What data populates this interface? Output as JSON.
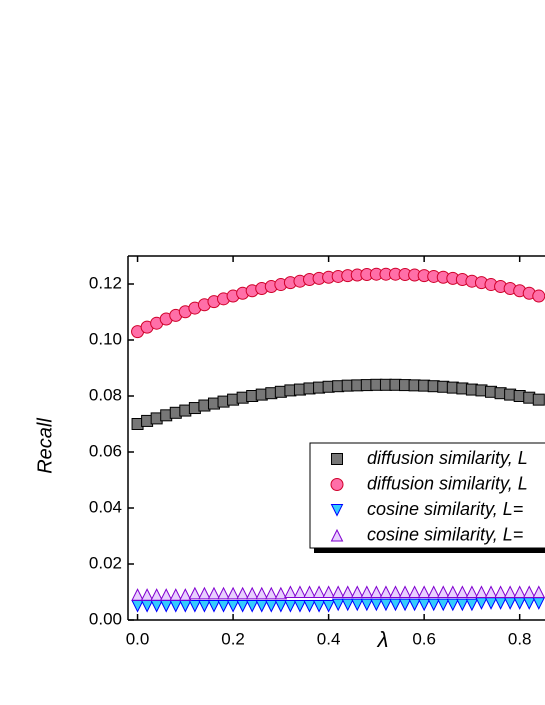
{
  "chart_data": {
    "type": "scatter",
    "x_label": "λ",
    "y_label": "Recall",
    "x": [
      0.0,
      0.02,
      0.04,
      0.06,
      0.08,
      0.1,
      0.12,
      0.14,
      0.16,
      0.18,
      0.2,
      0.22,
      0.24,
      0.26,
      0.28,
      0.3,
      0.32,
      0.34,
      0.36,
      0.38,
      0.4,
      0.42,
      0.44,
      0.46,
      0.48,
      0.5,
      0.52,
      0.54,
      0.56,
      0.58,
      0.6,
      0.62,
      0.64,
      0.66,
      0.68,
      0.7,
      0.72,
      0.74,
      0.76,
      0.78,
      0.8,
      0.82,
      0.84
    ],
    "series": [
      {
        "name": "diffusion similarity, L",
        "color": "#777777",
        "stroke": "#000000",
        "marker": "square",
        "values": [
          0.07,
          0.0711,
          0.072,
          0.0731,
          0.074,
          0.0748,
          0.0757,
          0.0766,
          0.0773,
          0.078,
          0.0787,
          0.0794,
          0.08,
          0.0805,
          0.081,
          0.0815,
          0.082,
          0.0823,
          0.0827,
          0.083,
          0.0833,
          0.0835,
          0.0837,
          0.0838,
          0.0839,
          0.084,
          0.084,
          0.084,
          0.0839,
          0.0838,
          0.0837,
          0.0835,
          0.0833,
          0.083,
          0.0827,
          0.0823,
          0.082,
          0.0815,
          0.081,
          0.0805,
          0.08,
          0.0794,
          0.0787
        ]
      },
      {
        "name": "diffusion similarity, L",
        "color": "#ff6fa8",
        "stroke": "#d0002a",
        "marker": "circle",
        "values": [
          0.103,
          0.1046,
          0.106,
          0.1075,
          0.1088,
          0.1101,
          0.1114,
          0.1126,
          0.1137,
          0.1147,
          0.1157,
          0.1167,
          0.1176,
          0.1184,
          0.1191,
          0.1198,
          0.1205,
          0.121,
          0.1216,
          0.122,
          0.1224,
          0.1227,
          0.123,
          0.1232,
          0.1234,
          0.1235,
          0.1235,
          0.1235,
          0.1234,
          0.1232,
          0.123,
          0.1227,
          0.1224,
          0.122,
          0.1216,
          0.121,
          0.1205,
          0.1198,
          0.1191,
          0.1184,
          0.1176,
          0.1167,
          0.1157
        ]
      },
      {
        "name": "cosine similarity, L=",
        "color": "#33ccff",
        "stroke": "#0000ff",
        "marker": "triangle-down",
        "values": [
          0.005,
          0.005,
          0.005,
          0.005,
          0.005,
          0.005,
          0.005,
          0.005,
          0.005,
          0.005,
          0.005,
          0.005,
          0.005,
          0.005,
          0.005,
          0.005,
          0.005,
          0.005,
          0.005,
          0.005,
          0.005,
          0.0055,
          0.0055,
          0.0055,
          0.0055,
          0.0055,
          0.0055,
          0.0055,
          0.0055,
          0.0055,
          0.0055,
          0.0055,
          0.0055,
          0.0055,
          0.0055,
          0.0055,
          0.006,
          0.006,
          0.006,
          0.006,
          0.006,
          0.006,
          0.006
        ]
      },
      {
        "name": "cosine similarity, L=",
        "color": "#e8d0ff",
        "stroke": "#8000d0",
        "marker": "triangle-up",
        "values": [
          0.009,
          0.009,
          0.009,
          0.009,
          0.009,
          0.009,
          0.0095,
          0.0095,
          0.0095,
          0.0095,
          0.0095,
          0.0095,
          0.0095,
          0.0095,
          0.0095,
          0.0095,
          0.01,
          0.01,
          0.01,
          0.01,
          0.01,
          0.01,
          0.01,
          0.01,
          0.01,
          0.01,
          0.01,
          0.01,
          0.01,
          0.01,
          0.01,
          0.01,
          0.01,
          0.01,
          0.01,
          0.01,
          0.01,
          0.01,
          0.01,
          0.01,
          0.01,
          0.01,
          0.01
        ]
      }
    ],
    "xlim": [
      -0.02,
      0.853
    ],
    "ylim": [
      0,
      0.13
    ],
    "xticks": [
      {
        "value": 0,
        "label": "0.0"
      },
      {
        "value": 0.2,
        "label": "0.2"
      },
      {
        "value": 0.4,
        "label": "0.4"
      },
      {
        "value": 0.6,
        "label": "0.6"
      },
      {
        "value": 0.8,
        "label": "0.8"
      }
    ],
    "yticks": [
      {
        "value": 0,
        "label": "0.00"
      },
      {
        "value": 0.02,
        "label": "0.02"
      },
      {
        "value": 0.04,
        "label": "0.04"
      },
      {
        "value": 0.06,
        "label": "0.06"
      },
      {
        "value": 0.08,
        "label": "0.08"
      },
      {
        "value": 0.1,
        "label": "0.10"
      },
      {
        "value": 0.12,
        "label": "0.12"
      }
    ],
    "grid": false
  }
}
